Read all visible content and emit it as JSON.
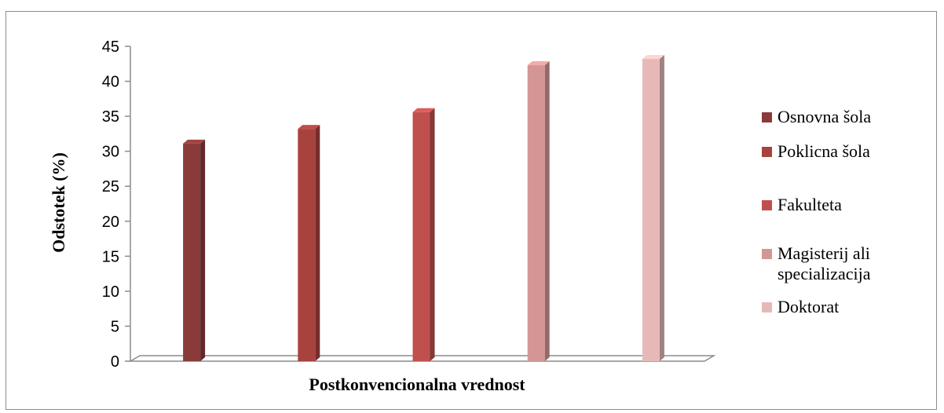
{
  "chart_data": {
    "type": "bar",
    "title": "",
    "xlabel": "Postkonvencionalna vrednost",
    "ylabel": "Odstotek (%)",
    "ylim": [
      0,
      45
    ],
    "yticks": [
      "0",
      "5",
      "10",
      "15",
      "20",
      "25",
      "30",
      "35",
      "40",
      "45"
    ],
    "legend_position": "right",
    "grid": false,
    "series": [
      {
        "name": "Osnovna šola",
        "value": 31.1,
        "color": "#8b3a3a"
      },
      {
        "name": "Poklicna šola",
        "value": 33.2,
        "color": "#a8423f"
      },
      {
        "name": "Fakulteta",
        "value": 35.6,
        "color": "#c0504d"
      },
      {
        "name": "Magisterij ali specializacija",
        "legend_lines": [
          "Magisterij ali",
          "specializacija"
        ],
        "value": 42.3,
        "color": "#d49694"
      },
      {
        "name": "Doktorat",
        "value": 43.2,
        "color": "#e6b9b8"
      }
    ]
  }
}
